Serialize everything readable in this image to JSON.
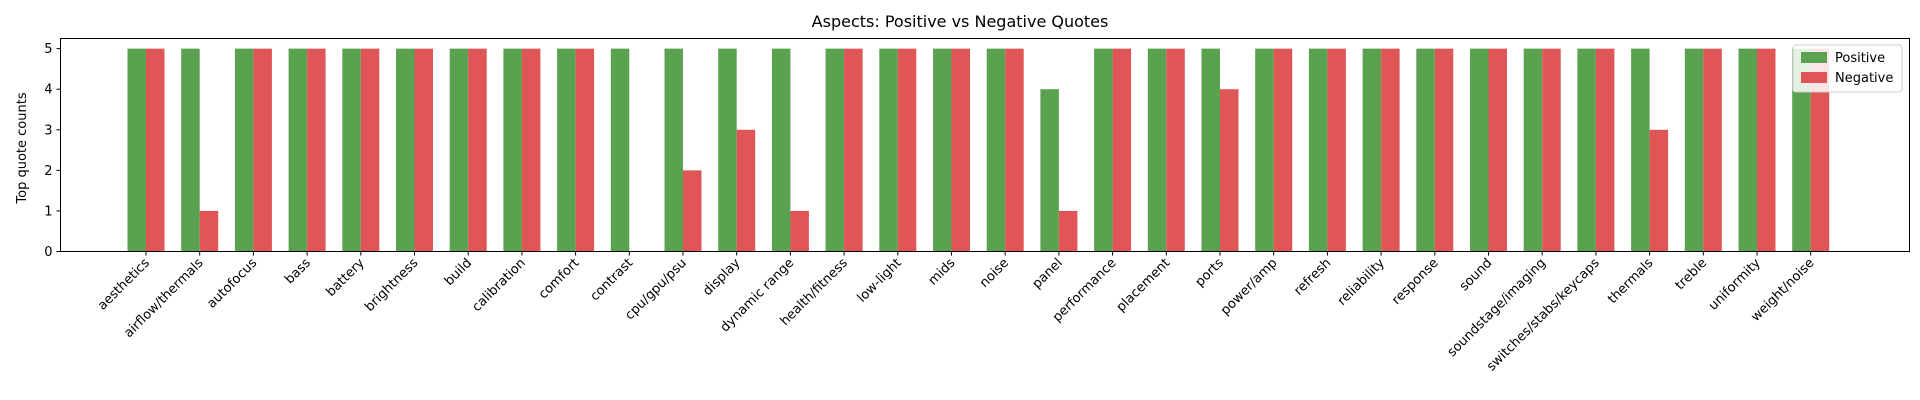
{
  "chart_data": {
    "type": "bar",
    "title": "Aspects: Positive vs Negative Quotes",
    "xlabel": "",
    "ylabel": "Top quote counts",
    "ylim": [
      0,
      5.25
    ],
    "yticks": [
      0,
      1,
      2,
      3,
      4,
      5
    ],
    "grid": false,
    "legend_position": "top-right",
    "categories": [
      "aesthetics",
      "airflow/thermals",
      "autofocus",
      "bass",
      "battery",
      "brightness",
      "build",
      "calibration",
      "comfort",
      "contrast",
      "cpu/gpu/psu",
      "display",
      "dynamic range",
      "health/fitness",
      "low-light",
      "mids",
      "noise",
      "panel",
      "performance",
      "placement",
      "ports",
      "power/amp",
      "refresh",
      "reliability",
      "response",
      "sound",
      "soundstage/imaging",
      "switches/stabs/keycaps",
      "thermals",
      "treble",
      "uniformity",
      "weight/noise"
    ],
    "series": [
      {
        "name": "Positive",
        "color": "#5aa150",
        "values": [
          5,
          5,
          5,
          5,
          5,
          5,
          5,
          5,
          5,
          5,
          5,
          5,
          5,
          5,
          5,
          5,
          5,
          4,
          5,
          5,
          5,
          5,
          5,
          5,
          5,
          5,
          5,
          5,
          5,
          5,
          5,
          5
        ]
      },
      {
        "name": "Negative",
        "color": "#e05556",
        "values": [
          5,
          1,
          5,
          5,
          5,
          5,
          5,
          5,
          5,
          0,
          2,
          3,
          1,
          5,
          5,
          5,
          5,
          1,
          5,
          5,
          4,
          5,
          5,
          5,
          5,
          5,
          5,
          5,
          3,
          5,
          5,
          5
        ]
      }
    ]
  }
}
